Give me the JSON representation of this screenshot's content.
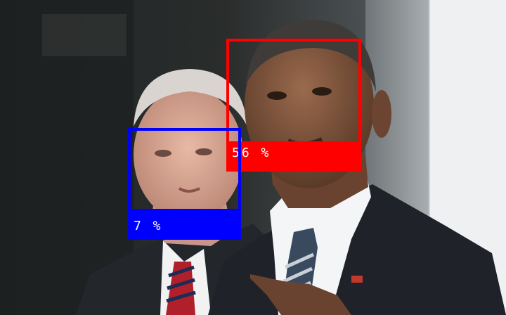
{
  "detections": [
    {
      "id": "a",
      "label": "56 %",
      "color": "#ff0000"
    },
    {
      "id": "b",
      "label": "7 %",
      "color": "#0000ff"
    }
  ]
}
